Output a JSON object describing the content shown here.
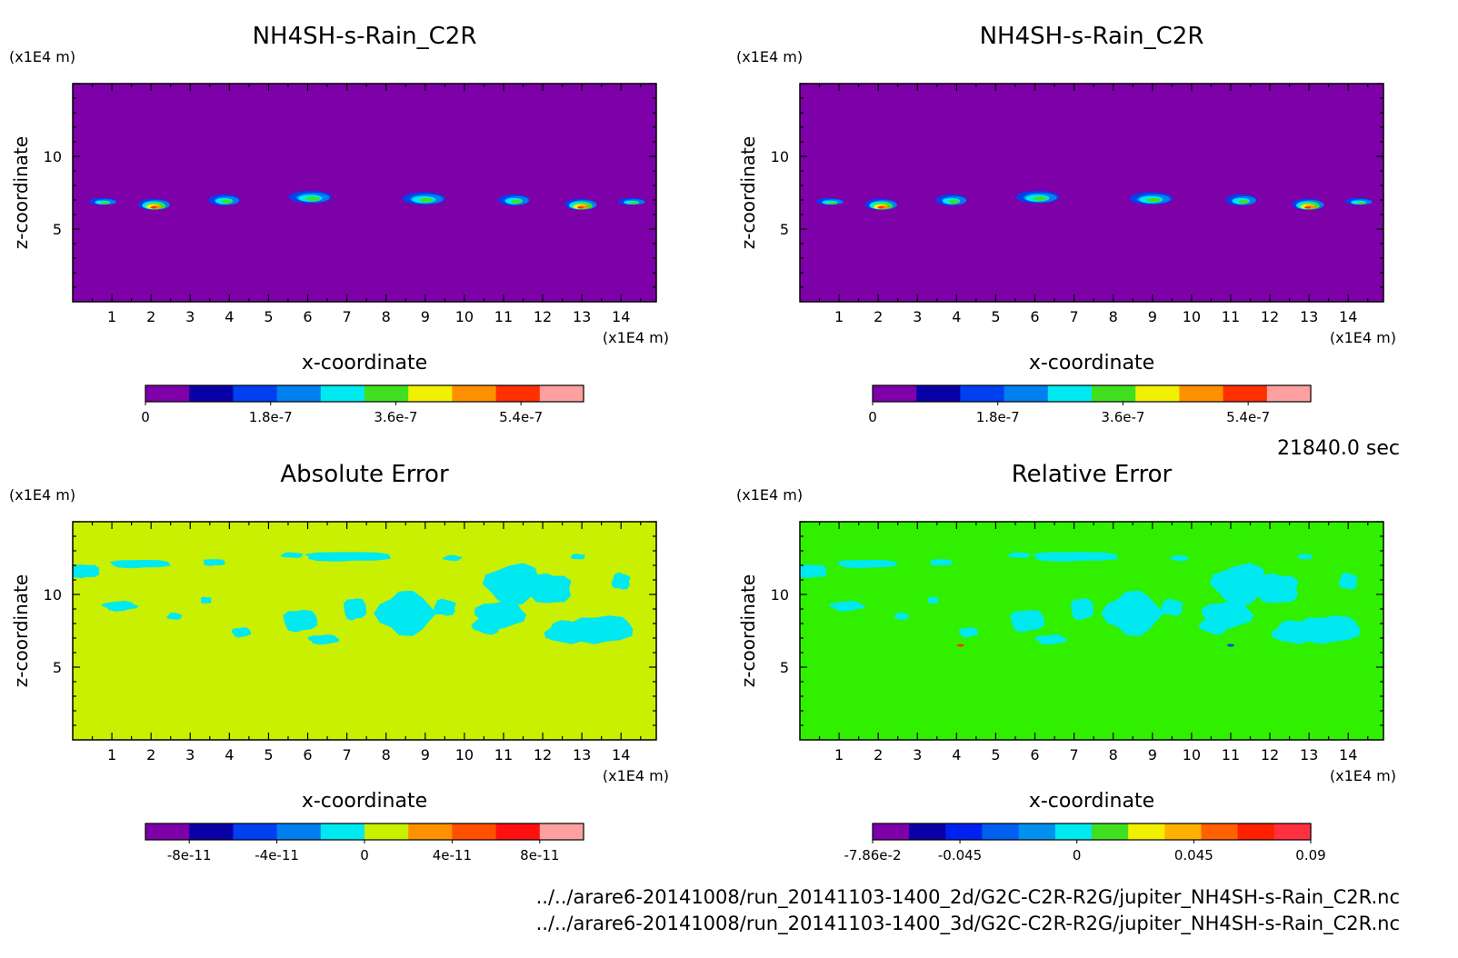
{
  "time_label": "21840.0 sec",
  "file_paths": [
    "../../arare6-20141008/run_20141103-1400_2d/G2C-C2R-R2G/jupiter_NH4SH-s-Rain_C2R.nc",
    "../../arare6-20141008/run_20141103-1400_3d/G2C-C2R-R2G/jupiter_NH4SH-s-Rain_C2R.nc"
  ],
  "colors": {
    "frame": "#000000",
    "cloud_palette": [
      "#7d00a8",
      "#0a00a8",
      "#0040f0",
      "#0080f0",
      "#00e8f0",
      "#40e020",
      "#f0f000",
      "#ff9000",
      "#ff3000",
      "#ffa0a0"
    ]
  },
  "chart_data": [
    {
      "type": "heatmap",
      "title": "NH4SH-s-Rain_C2R",
      "xlabel": "x-coordinate",
      "ylabel": "z-coordinate",
      "x_unit": "(x1E4 m)",
      "y_unit": "(x1E4 m)",
      "xticks": [
        1,
        2,
        3,
        4,
        5,
        6,
        7,
        8,
        9,
        10,
        11,
        12,
        13,
        14
      ],
      "yticks": [
        5,
        10
      ],
      "xlim": [
        0,
        14.9
      ],
      "ylim": [
        0,
        15
      ],
      "background_color": "#7d00a8",
      "colorbar": {
        "colors": [
          "#7d00a8",
          "#0a00a8",
          "#0040f0",
          "#0080f0",
          "#00e8f0",
          "#40e020",
          "#f0f000",
          "#ff9000",
          "#ff3000",
          "#ffa0a0"
        ],
        "tick_labels": [
          "0",
          "1.8e-7",
          "3.6e-7",
          "5.4e-7"
        ],
        "tick_values": [
          0,
          1.8e-07,
          3.6e-07,
          5.4e-07
        ],
        "range": [
          0,
          6.3e-07
        ]
      },
      "features": [
        {
          "x": 0.8,
          "z": 6.9,
          "w": 0.7,
          "h": 0.5,
          "peak": 0.55
        },
        {
          "x": 2.1,
          "z": 6.7,
          "w": 0.8,
          "h": 0.8,
          "peak": 0.85
        },
        {
          "x": 3.9,
          "z": 7.0,
          "w": 0.8,
          "h": 0.8,
          "peak": 0.6
        },
        {
          "x": 6.1,
          "z": 7.2,
          "w": 1.1,
          "h": 0.9,
          "peak": 0.6
        },
        {
          "x": 9.0,
          "z": 7.1,
          "w": 1.1,
          "h": 0.9,
          "peak": 0.6
        },
        {
          "x": 11.3,
          "z": 7.0,
          "w": 0.8,
          "h": 0.8,
          "peak": 0.6
        },
        {
          "x": 13.0,
          "z": 6.7,
          "w": 0.8,
          "h": 0.8,
          "peak": 0.85
        },
        {
          "x": 14.3,
          "z": 6.9,
          "w": 0.7,
          "h": 0.5,
          "peak": 0.55
        }
      ]
    },
    {
      "type": "heatmap",
      "title": "NH4SH-s-Rain_C2R",
      "xlabel": "x-coordinate",
      "ylabel": "z-coordinate",
      "x_unit": "(x1E4 m)",
      "y_unit": "(x1E4 m)",
      "xticks": [
        1,
        2,
        3,
        4,
        5,
        6,
        7,
        8,
        9,
        10,
        11,
        12,
        13,
        14
      ],
      "yticks": [
        5,
        10
      ],
      "xlim": [
        0,
        14.9
      ],
      "ylim": [
        0,
        15
      ],
      "background_color": "#7d00a8",
      "colorbar": {
        "colors": [
          "#7d00a8",
          "#0a00a8",
          "#0040f0",
          "#0080f0",
          "#00e8f0",
          "#40e020",
          "#f0f000",
          "#ff9000",
          "#ff3000",
          "#ffa0a0"
        ],
        "tick_labels": [
          "0",
          "1.8e-7",
          "3.6e-7",
          "5.4e-7"
        ],
        "tick_values": [
          0,
          1.8e-07,
          3.6e-07,
          5.4e-07
        ],
        "range": [
          0,
          6.3e-07
        ]
      },
      "features": [
        {
          "x": 0.8,
          "z": 6.9,
          "w": 0.7,
          "h": 0.5,
          "peak": 0.55
        },
        {
          "x": 2.1,
          "z": 6.7,
          "w": 0.8,
          "h": 0.8,
          "peak": 0.85
        },
        {
          "x": 3.9,
          "z": 7.0,
          "w": 0.8,
          "h": 0.8,
          "peak": 0.6
        },
        {
          "x": 6.1,
          "z": 7.2,
          "w": 1.1,
          "h": 0.9,
          "peak": 0.6
        },
        {
          "x": 9.0,
          "z": 7.1,
          "w": 1.1,
          "h": 0.9,
          "peak": 0.6
        },
        {
          "x": 11.3,
          "z": 7.0,
          "w": 0.8,
          "h": 0.8,
          "peak": 0.6
        },
        {
          "x": 13.0,
          "z": 6.7,
          "w": 0.8,
          "h": 0.8,
          "peak": 0.85
        },
        {
          "x": 14.3,
          "z": 6.9,
          "w": 0.7,
          "h": 0.5,
          "peak": 0.55
        }
      ]
    },
    {
      "type": "heatmap",
      "title": "Absolute Error",
      "xlabel": "x-coordinate",
      "ylabel": "z-coordinate",
      "x_unit": "(x1E4 m)",
      "y_unit": "(x1E4 m)",
      "xticks": [
        1,
        2,
        3,
        4,
        5,
        6,
        7,
        8,
        9,
        10,
        11,
        12,
        13,
        14
      ],
      "yticks": [
        5,
        10
      ],
      "xlim": [
        0,
        14.9
      ],
      "ylim": [
        0,
        15
      ],
      "background_color": "#c8f000",
      "patch_color": "#00e8f0",
      "colorbar": {
        "colors": [
          "#7d00a8",
          "#0a00a8",
          "#0040f0",
          "#0080f0",
          "#00e8f0",
          "#c8f000",
          "#ff9000",
          "#ff5000",
          "#ff1010",
          "#ffa0a0"
        ],
        "tick_labels": [
          "-8e-11",
          "-4e-11",
          "0",
          "4e-11",
          "8e-11"
        ],
        "tick_values": [
          -8e-11,
          -4e-11,
          0,
          4e-11,
          8e-11
        ],
        "range": [
          -1e-10,
          1e-10
        ]
      },
      "patches": [
        {
          "x": 0.3,
          "z": 11.6,
          "w": 0.8,
          "h": 1.0
        },
        {
          "x": 1.7,
          "z": 12.1,
          "w": 1.6,
          "h": 0.6
        },
        {
          "x": 3.6,
          "z": 12.2,
          "w": 0.6,
          "h": 0.5
        },
        {
          "x": 1.2,
          "z": 9.2,
          "w": 0.9,
          "h": 0.7
        },
        {
          "x": 2.6,
          "z": 8.5,
          "w": 0.4,
          "h": 0.5
        },
        {
          "x": 3.4,
          "z": 9.6,
          "w": 0.3,
          "h": 0.5
        },
        {
          "x": 4.3,
          "z": 7.4,
          "w": 0.5,
          "h": 0.7
        },
        {
          "x": 5.6,
          "z": 12.7,
          "w": 0.6,
          "h": 0.4
        },
        {
          "x": 7.0,
          "z": 12.6,
          "w": 2.3,
          "h": 0.7
        },
        {
          "x": 9.7,
          "z": 12.5,
          "w": 0.5,
          "h": 0.4
        },
        {
          "x": 5.8,
          "z": 8.2,
          "w": 0.9,
          "h": 1.6
        },
        {
          "x": 6.4,
          "z": 6.9,
          "w": 0.8,
          "h": 0.7
        },
        {
          "x": 7.2,
          "z": 9.0,
          "w": 0.6,
          "h": 1.6
        },
        {
          "x": 8.5,
          "z": 8.7,
          "w": 1.5,
          "h": 3.0
        },
        {
          "x": 9.5,
          "z": 9.1,
          "w": 0.6,
          "h": 1.2
        },
        {
          "x": 11.3,
          "z": 10.7,
          "w": 1.6,
          "h": 2.8
        },
        {
          "x": 10.9,
          "z": 8.6,
          "w": 1.3,
          "h": 2.0
        },
        {
          "x": 12.2,
          "z": 10.4,
          "w": 1.1,
          "h": 2.2
        },
        {
          "x": 13.5,
          "z": 7.6,
          "w": 1.6,
          "h": 2.0
        },
        {
          "x": 12.6,
          "z": 7.4,
          "w": 1.1,
          "h": 1.6
        },
        {
          "x": 14.0,
          "z": 10.9,
          "w": 0.5,
          "h": 1.2
        },
        {
          "x": 10.6,
          "z": 7.9,
          "w": 0.8,
          "h": 1.3
        },
        {
          "x": 12.9,
          "z": 12.6,
          "w": 0.4,
          "h": 0.4
        }
      ]
    },
    {
      "type": "heatmap",
      "title": "Relative Error",
      "xlabel": "x-coordinate",
      "ylabel": "z-coordinate",
      "x_unit": "(x1E4 m)",
      "y_unit": "(x1E4 m)",
      "xticks": [
        1,
        2,
        3,
        4,
        5,
        6,
        7,
        8,
        9,
        10,
        11,
        12,
        13,
        14
      ],
      "yticks": [
        5,
        10
      ],
      "xlim": [
        0,
        14.9
      ],
      "ylim": [
        0,
        15
      ],
      "background_color": "#30f000",
      "patch_color": "#00e8f0",
      "colorbar": {
        "colors": [
          "#7d00a8",
          "#0a00a8",
          "#0020f0",
          "#0060f0",
          "#0090f0",
          "#00e8f0",
          "#40e020",
          "#f0f000",
          "#ffb000",
          "#ff6000",
          "#ff2000",
          "#ff3040"
        ],
        "tick_labels": [
          "-7.86e-2",
          "-0.045",
          "0",
          "0.045",
          "0.09"
        ],
        "tick_values": [
          -0.0786,
          -0.045,
          0,
          0.045,
          0.09
        ],
        "range": [
          -0.0786,
          0.09
        ]
      },
      "patches": [
        {
          "x": 0.3,
          "z": 11.6,
          "w": 0.8,
          "h": 1.0
        },
        {
          "x": 1.7,
          "z": 12.1,
          "w": 1.6,
          "h": 0.6
        },
        {
          "x": 3.6,
          "z": 12.2,
          "w": 0.6,
          "h": 0.5
        },
        {
          "x": 1.2,
          "z": 9.2,
          "w": 0.9,
          "h": 0.7
        },
        {
          "x": 2.6,
          "z": 8.5,
          "w": 0.4,
          "h": 0.5
        },
        {
          "x": 3.4,
          "z": 9.6,
          "w": 0.3,
          "h": 0.5
        },
        {
          "x": 4.3,
          "z": 7.4,
          "w": 0.5,
          "h": 0.7
        },
        {
          "x": 5.6,
          "z": 12.7,
          "w": 0.6,
          "h": 0.4
        },
        {
          "x": 7.0,
          "z": 12.6,
          "w": 2.3,
          "h": 0.7
        },
        {
          "x": 9.7,
          "z": 12.5,
          "w": 0.5,
          "h": 0.4
        },
        {
          "x": 5.8,
          "z": 8.2,
          "w": 0.9,
          "h": 1.6
        },
        {
          "x": 6.4,
          "z": 6.9,
          "w": 0.8,
          "h": 0.7
        },
        {
          "x": 7.2,
          "z": 9.0,
          "w": 0.6,
          "h": 1.6
        },
        {
          "x": 8.5,
          "z": 8.7,
          "w": 1.5,
          "h": 3.0
        },
        {
          "x": 9.5,
          "z": 9.1,
          "w": 0.6,
          "h": 1.2
        },
        {
          "x": 11.3,
          "z": 10.7,
          "w": 1.6,
          "h": 2.8
        },
        {
          "x": 10.9,
          "z": 8.6,
          "w": 1.3,
          "h": 2.0
        },
        {
          "x": 12.2,
          "z": 10.4,
          "w": 1.1,
          "h": 2.2
        },
        {
          "x": 13.5,
          "z": 7.6,
          "w": 1.6,
          "h": 2.0
        },
        {
          "x": 12.6,
          "z": 7.4,
          "w": 1.1,
          "h": 1.6
        },
        {
          "x": 14.0,
          "z": 10.9,
          "w": 0.5,
          "h": 1.2
        },
        {
          "x": 10.6,
          "z": 7.9,
          "w": 0.8,
          "h": 1.3
        },
        {
          "x": 12.9,
          "z": 12.6,
          "w": 0.4,
          "h": 0.4
        }
      ],
      "spots": [
        {
          "x": 4.1,
          "z": 6.5,
          "color": "#ff3000"
        },
        {
          "x": 11.0,
          "z": 6.5,
          "color": "#0040f0"
        }
      ]
    }
  ]
}
